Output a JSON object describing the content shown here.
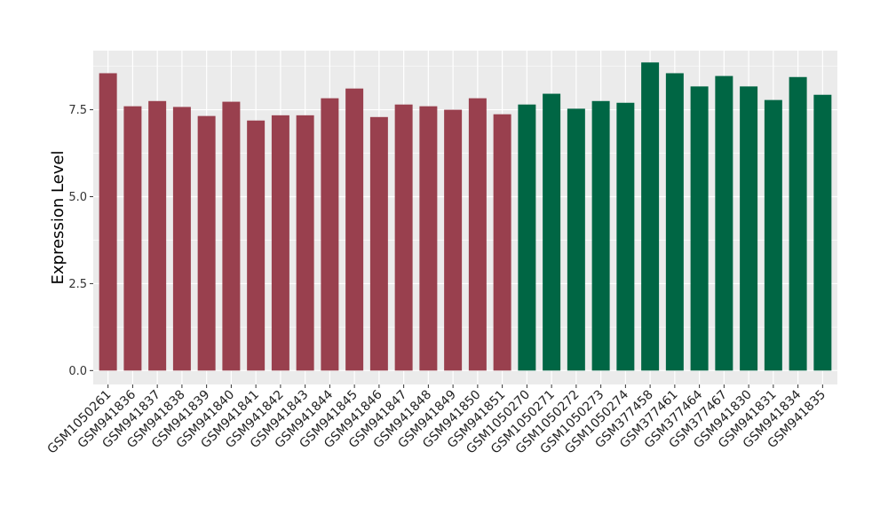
{
  "chart_data": {
    "type": "bar",
    "title": "",
    "xlabel": "",
    "ylabel": "Expression Level",
    "ylim": [
      -0.4,
      9.2
    ],
    "yticks": [
      0.0,
      2.5,
      5.0,
      7.5
    ],
    "ytick_labels": [
      "0.0",
      "2.5",
      "5.0",
      "7.5"
    ],
    "grid": true,
    "legend": "none",
    "categories": [
      "GSM1050261",
      "GSM941836",
      "GSM941837",
      "GSM941838",
      "GSM941839",
      "GSM941840",
      "GSM941841",
      "GSM941842",
      "GSM941843",
      "GSM941844",
      "GSM941845",
      "GSM941846",
      "GSM941847",
      "GSM941848",
      "GSM941849",
      "GSM941850",
      "GSM941851",
      "GSM1050270",
      "GSM1050271",
      "GSM1050272",
      "GSM1050273",
      "GSM1050274",
      "GSM377458",
      "GSM377461",
      "GSM377464",
      "GSM377467",
      "GSM941830",
      "GSM941831",
      "GSM941834",
      "GSM941835"
    ],
    "values": [
      8.55,
      7.6,
      7.75,
      7.58,
      7.32,
      7.73,
      7.19,
      7.34,
      7.34,
      7.83,
      8.11,
      7.29,
      7.65,
      7.6,
      7.5,
      7.83,
      7.37,
      7.65,
      7.96,
      7.53,
      7.75,
      7.7,
      8.86,
      8.55,
      8.17,
      8.47,
      8.17,
      7.78,
      8.44,
      7.93
    ],
    "group_sizes": [
      17,
      13
    ],
    "colors": [
      "#99404e",
      "#006644"
    ]
  }
}
